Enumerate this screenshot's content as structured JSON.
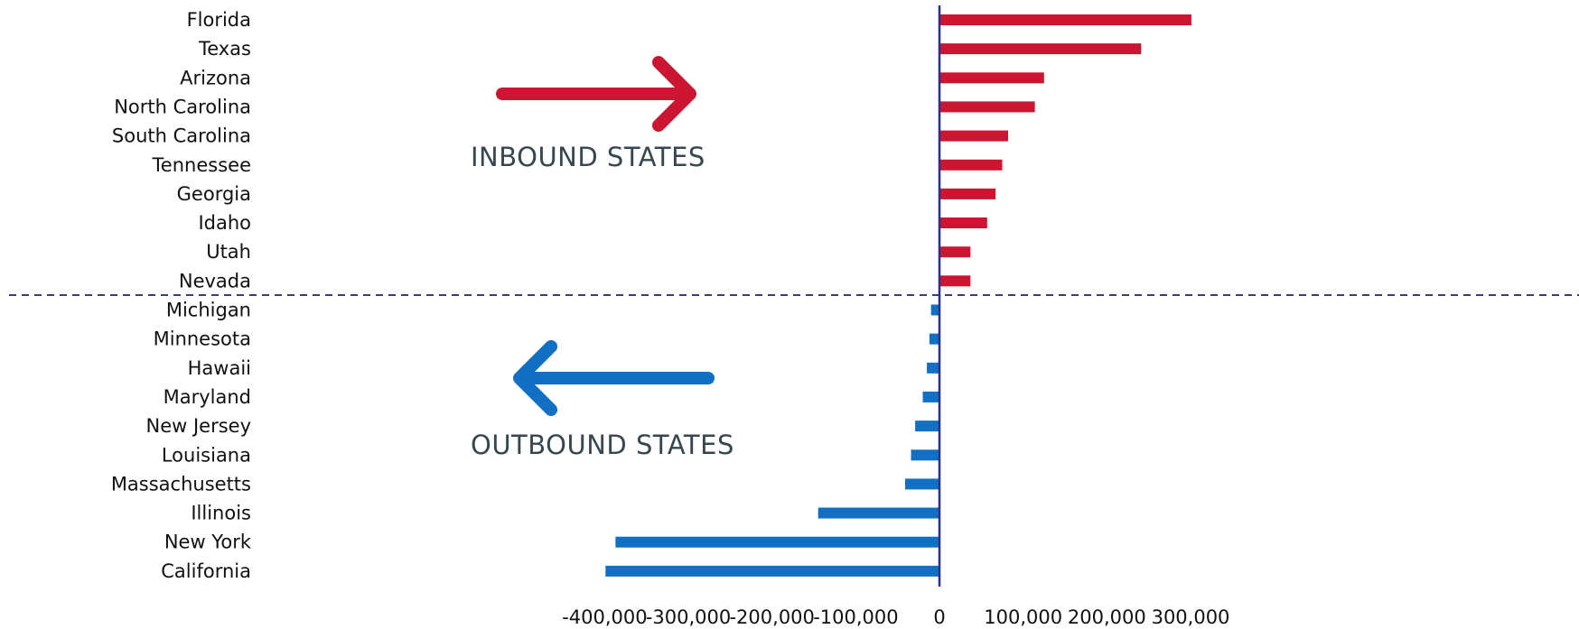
{
  "chart_data": {
    "type": "bar",
    "orientation": "horizontal",
    "categories": [
      "Florida",
      "Texas",
      "Arizona",
      "North Carolina",
      "South Carolina",
      "Tennessee",
      "Georgia",
      "Idaho",
      "Utah",
      "Nevada",
      "Michigan",
      "Minnesota",
      "Hawaii",
      "Maryland",
      "New Jersey",
      "Louisiana",
      "Massachusetts",
      "Illinois",
      "New York",
      "California"
    ],
    "values": [
      301000,
      241000,
      125000,
      114000,
      82000,
      75000,
      67000,
      57000,
      37000,
      37000,
      -10000,
      -12000,
      -15000,
      -20000,
      -29000,
      -34000,
      -41000,
      -145000,
      -387000,
      -399000
    ],
    "xlim": [
      -400000,
      370000
    ],
    "xticks": [
      -400000,
      -300000,
      -200000,
      -100000,
      0,
      100000,
      200000,
      300000
    ],
    "xtick_labels": [
      "-400,000",
      "-300,000",
      "-200,000",
      "-100,000",
      "0",
      "100,000",
      "200,000",
      "300,000"
    ],
    "title": "",
    "xlabel": "",
    "ylabel": "",
    "grid": false,
    "annotations": [
      {
        "text": "INBOUND STATES",
        "arrow": "right"
      },
      {
        "text": "OUTBOUND STATES",
        "arrow": "left"
      }
    ],
    "colors": {
      "positive": "#cc1531",
      "negative": "#1170c4",
      "zero_line": "#2b2f8a",
      "divider": "#3d3a8a",
      "annotation_text": "#37474f"
    }
  }
}
